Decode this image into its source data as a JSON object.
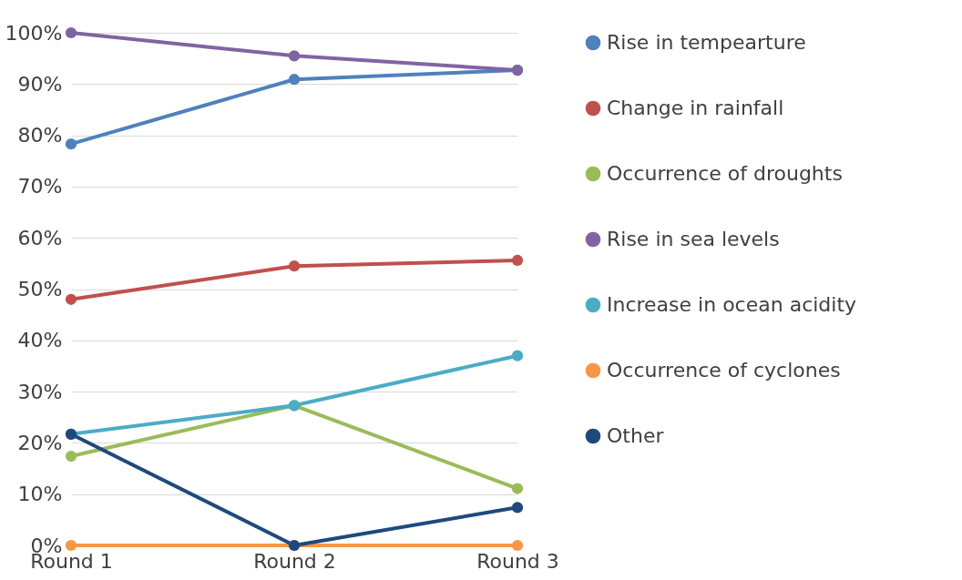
{
  "chart_data": {
    "type": "line",
    "categories": [
      "Round 1",
      "Round 2",
      "Round 3"
    ],
    "series": [
      {
        "name": "Rise in tempearture",
        "color": "#4f81bd",
        "values": [
          78.3,
          90.9,
          92.7
        ]
      },
      {
        "name": "Change in rainfall",
        "color": "#c0504d",
        "values": [
          48.0,
          54.5,
          55.6
        ]
      },
      {
        "name": "Occurrence of droughts",
        "color": "#9bbb59",
        "values": [
          17.4,
          27.3,
          11.1
        ]
      },
      {
        "name": "Rise in sea levels",
        "color": "#8064a2",
        "values": [
          100,
          95.5,
          92.7
        ]
      },
      {
        "name": "Increase in ocean acidity",
        "color": "#4bacc6",
        "values": [
          21.7,
          27.3,
          37.0
        ]
      },
      {
        "name": "Occurrence of cyclones",
        "color": "#f79646",
        "values": [
          0,
          0,
          0
        ]
      },
      {
        "name": "Other",
        "color": "#1f497d",
        "values": [
          21.7,
          0,
          7.4
        ]
      }
    ],
    "ylim": [
      0,
      100
    ],
    "yticks": [
      {
        "value": 0,
        "label": "0%"
      },
      {
        "value": 10,
        "label": "10%"
      },
      {
        "value": 20,
        "label": "20%"
      },
      {
        "value": 30,
        "label": "30%"
      },
      {
        "value": 40,
        "label": "40%"
      },
      {
        "value": 50,
        "label": "50%"
      },
      {
        "value": 60,
        "label": "60%"
      },
      {
        "value": 70,
        "label": "70%"
      },
      {
        "value": 80,
        "label": "80%"
      },
      {
        "value": 90,
        "label": "90%"
      },
      {
        "value": 100,
        "label": "100%"
      }
    ],
    "grid": "y",
    "legend": "right",
    "marker": "circle",
    "line_style": "solid"
  }
}
